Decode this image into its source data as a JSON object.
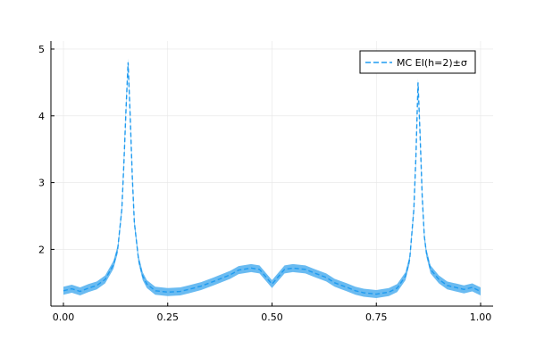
{
  "chart_data": {
    "type": "line",
    "title": "",
    "xlabel": "",
    "ylabel": "",
    "xlim": [
      -0.03,
      1.03
    ],
    "ylim": [
      1.15,
      5.12
    ],
    "grid": true,
    "legend": "top-right",
    "x_ticks": [
      0.0,
      0.25,
      0.5,
      0.75,
      1.0
    ],
    "x_tick_labels": [
      "0.00",
      "0.25",
      "0.50",
      "0.75",
      "1.00"
    ],
    "y_ticks": [
      2,
      3,
      4,
      5
    ],
    "y_tick_labels": [
      "2",
      "3",
      "4",
      "5"
    ],
    "series": [
      {
        "name": "MC EI(h=2)±σ",
        "color": "#1f9bf0",
        "band_color": "#5ab4f0",
        "line_style": "dashed",
        "sigma": 0.06,
        "x": [
          0.0,
          0.02,
          0.04,
          0.06,
          0.08,
          0.1,
          0.12,
          0.13,
          0.14,
          0.145,
          0.15,
          0.155,
          0.16,
          0.165,
          0.17,
          0.18,
          0.19,
          0.2,
          0.22,
          0.25,
          0.28,
          0.3,
          0.33,
          0.36,
          0.4,
          0.42,
          0.45,
          0.47,
          0.5,
          0.53,
          0.55,
          0.58,
          0.6,
          0.63,
          0.65,
          0.68,
          0.7,
          0.72,
          0.75,
          0.78,
          0.8,
          0.82,
          0.83,
          0.84,
          0.845,
          0.85,
          0.855,
          0.86,
          0.865,
          0.87,
          0.88,
          0.9,
          0.92,
          0.94,
          0.96,
          0.98,
          1.0
        ],
        "y": [
          1.38,
          1.41,
          1.37,
          1.42,
          1.46,
          1.55,
          1.77,
          2.0,
          2.6,
          3.3,
          4.1,
          4.8,
          4.0,
          3.1,
          2.4,
          1.85,
          1.6,
          1.48,
          1.38,
          1.36,
          1.37,
          1.4,
          1.45,
          1.52,
          1.62,
          1.69,
          1.72,
          1.7,
          1.48,
          1.7,
          1.72,
          1.7,
          1.65,
          1.58,
          1.5,
          1.43,
          1.38,
          1.35,
          1.33,
          1.36,
          1.42,
          1.6,
          1.85,
          2.6,
          3.4,
          4.5,
          3.7,
          2.8,
          2.2,
          1.95,
          1.7,
          1.55,
          1.46,
          1.43,
          1.4,
          1.43,
          1.37
        ]
      }
    ]
  }
}
